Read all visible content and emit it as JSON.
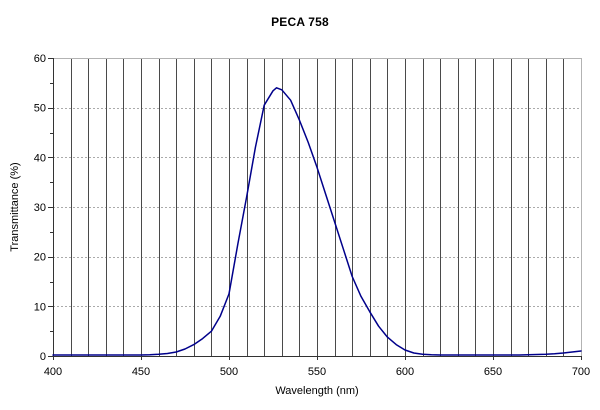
{
  "chart_data": {
    "type": "line",
    "title": "PECA 758",
    "xlabel": "Wavelength (nm)",
    "ylabel": "Transmittance (%)",
    "xlim": [
      400,
      700
    ],
    "ylim": [
      0,
      60
    ],
    "x_major_ticks": [
      400,
      450,
      500,
      550,
      600,
      650,
      700
    ],
    "x_grid_step": 10,
    "y_major_ticks": [
      0,
      10,
      20,
      30,
      40,
      50,
      60
    ],
    "y_minor_tick_step": 5,
    "grid": true,
    "legend": "none",
    "colors": {
      "line": "#00008B",
      "vertical_grid": "#4a4a4a",
      "horizontal_grid": "#aaaaaa",
      "axis": "#333333",
      "box_top_right": "#b3b3b3",
      "background": "#ffffff",
      "text": "#000000"
    },
    "series": [
      {
        "name": "PECA 758",
        "points": [
          [
            400,
            0.2
          ],
          [
            405,
            0.2
          ],
          [
            410,
            0.2
          ],
          [
            415,
            0.2
          ],
          [
            420,
            0.2
          ],
          [
            425,
            0.2
          ],
          [
            430,
            0.2
          ],
          [
            435,
            0.2
          ],
          [
            440,
            0.2
          ],
          [
            445,
            0.2
          ],
          [
            450,
            0.2
          ],
          [
            455,
            0.25
          ],
          [
            460,
            0.35
          ],
          [
            465,
            0.5
          ],
          [
            470,
            0.8
          ],
          [
            475,
            1.4
          ],
          [
            480,
            2.3
          ],
          [
            485,
            3.5
          ],
          [
            490,
            5.0
          ],
          [
            495,
            8.0
          ],
          [
            500,
            12.5
          ],
          [
            505,
            22.5
          ],
          [
            510,
            32.0
          ],
          [
            515,
            42.0
          ],
          [
            520,
            50.5
          ],
          [
            525,
            53.4
          ],
          [
            527,
            54.0
          ],
          [
            530,
            53.6
          ],
          [
            535,
            51.5
          ],
          [
            540,
            47.5
          ],
          [
            545,
            43.0
          ],
          [
            550,
            38.0
          ],
          [
            555,
            32.5
          ],
          [
            560,
            27.0
          ],
          [
            565,
            21.5
          ],
          [
            570,
            16.0
          ],
          [
            575,
            12.0
          ],
          [
            580,
            8.9
          ],
          [
            585,
            6.0
          ],
          [
            590,
            3.8
          ],
          [
            595,
            2.3
          ],
          [
            600,
            1.2
          ],
          [
            605,
            0.6
          ],
          [
            610,
            0.35
          ],
          [
            615,
            0.25
          ],
          [
            620,
            0.2
          ],
          [
            625,
            0.2
          ],
          [
            630,
            0.2
          ],
          [
            635,
            0.2
          ],
          [
            640,
            0.2
          ],
          [
            645,
            0.2
          ],
          [
            650,
            0.2
          ],
          [
            655,
            0.2
          ],
          [
            660,
            0.2
          ],
          [
            665,
            0.2
          ],
          [
            670,
            0.25
          ],
          [
            675,
            0.3
          ],
          [
            680,
            0.35
          ],
          [
            685,
            0.45
          ],
          [
            690,
            0.6
          ],
          [
            695,
            0.8
          ],
          [
            700,
            1.0
          ]
        ]
      }
    ]
  }
}
